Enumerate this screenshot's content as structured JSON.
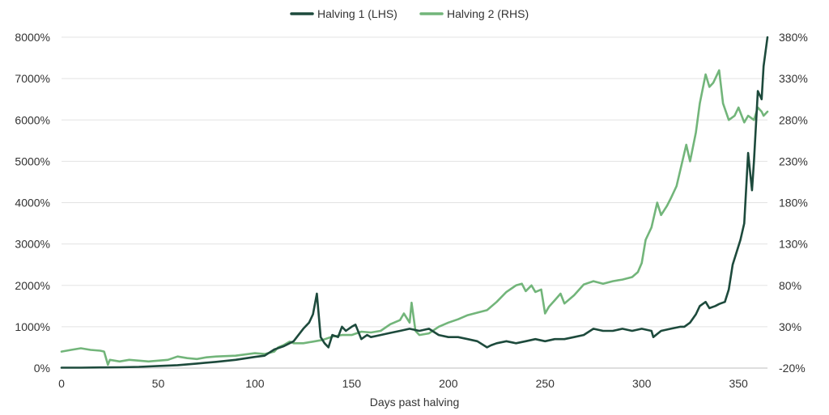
{
  "chart_data": {
    "type": "line",
    "title": "",
    "xlabel": "Days past halving",
    "xlim": [
      0,
      365
    ],
    "x_ticks": [
      0,
      50,
      100,
      150,
      200,
      250,
      300,
      350
    ],
    "x_tick_labels": [
      "0",
      "50",
      "100",
      "150",
      "200",
      "250",
      "300",
      "350"
    ],
    "ylim_left": [
      0,
      8000
    ],
    "y_left_ticks": [
      0,
      1000,
      2000,
      3000,
      4000,
      5000,
      6000,
      7000,
      8000
    ],
    "y_left_tick_labels": [
      "0%",
      "1000%",
      "2000%",
      "3000%",
      "4000%",
      "5000%",
      "6000%",
      "7000%",
      "8000%"
    ],
    "ylim_right": [
      -20,
      380
    ],
    "y_right_ticks": [
      -20,
      30,
      80,
      130,
      180,
      230,
      280,
      330,
      380
    ],
    "y_right_tick_labels": [
      "-20%",
      "30%",
      "80%",
      "130%",
      "180%",
      "230%",
      "280%",
      "330%",
      "380%"
    ],
    "grid": true,
    "legend_position": "top-center",
    "series": [
      {
        "name": "Halving 1 (LHS)",
        "axis": "left",
        "color": "#1d4a3c",
        "x": [
          0,
          10,
          20,
          30,
          40,
          50,
          60,
          70,
          80,
          90,
          100,
          105,
          110,
          115,
          120,
          125,
          128,
          130,
          132,
          134,
          136,
          138,
          140,
          143,
          145,
          147,
          150,
          152,
          155,
          158,
          160,
          165,
          170,
          175,
          180,
          185,
          190,
          195,
          200,
          205,
          210,
          215,
          220,
          222,
          225,
          230,
          235,
          240,
          245,
          250,
          255,
          260,
          265,
          270,
          275,
          280,
          285,
          290,
          295,
          300,
          305,
          306,
          310,
          315,
          320,
          322,
          325,
          328,
          330,
          333,
          335,
          338,
          340,
          343,
          345,
          347,
          349,
          351,
          353,
          355,
          357,
          358,
          360,
          362,
          363,
          365
        ],
        "values": [
          10,
          10,
          15,
          20,
          30,
          50,
          70,
          110,
          150,
          200,
          270,
          300,
          450,
          530,
          650,
          950,
          1100,
          1300,
          1800,
          750,
          600,
          500,
          800,
          750,
          1000,
          900,
          1000,
          1050,
          700,
          800,
          750,
          800,
          850,
          900,
          950,
          900,
          950,
          800,
          750,
          750,
          700,
          650,
          500,
          550,
          600,
          650,
          600,
          650,
          700,
          650,
          700,
          700,
          750,
          800,
          950,
          900,
          900,
          950,
          900,
          950,
          900,
          750,
          900,
          950,
          1000,
          1000,
          1100,
          1300,
          1500,
          1600,
          1450,
          1500,
          1550,
          1600,
          1900,
          2500,
          2800,
          3100,
          3500,
          5200,
          4300,
          5000,
          6700,
          6500,
          7300,
          8000
        ]
      },
      {
        "name": "Halving 2 (RHS)",
        "axis": "right",
        "color": "#72b57a",
        "x": [
          0,
          5,
          10,
          15,
          20,
          22,
          24,
          25,
          30,
          35,
          40,
          45,
          50,
          55,
          60,
          65,
          70,
          75,
          80,
          90,
          100,
          105,
          110,
          112,
          115,
          118,
          120,
          125,
          130,
          135,
          140,
          145,
          150,
          155,
          160,
          165,
          170,
          175,
          177,
          180,
          181,
          183,
          185,
          190,
          195,
          200,
          205,
          210,
          215,
          220,
          225,
          230,
          235,
          238,
          240,
          243,
          245,
          248,
          250,
          252,
          255,
          258,
          260,
          265,
          270,
          275,
          280,
          285,
          290,
          295,
          298,
          300,
          302,
          305,
          308,
          310,
          313,
          315,
          318,
          320,
          323,
          325,
          328,
          330,
          333,
          335,
          337,
          340,
          342,
          345,
          348,
          350,
          353,
          355,
          358,
          360,
          362,
          363,
          365
        ],
        "values": [
          0,
          2,
          4,
          2,
          1,
          0,
          -16,
          -10,
          -12,
          -10,
          -11,
          -12,
          -11,
          -10,
          -6,
          -8,
          -9,
          -7,
          -6,
          -5,
          -2,
          -3,
          0,
          5,
          8,
          12,
          10,
          10,
          12,
          14,
          18,
          20,
          20,
          24,
          23,
          25,
          33,
          38,
          46,
          35,
          59,
          25,
          20,
          22,
          30,
          35,
          39,
          44,
          47,
          50,
          60,
          72,
          80,
          82,
          73,
          80,
          72,
          75,
          46,
          54,
          62,
          70,
          58,
          68,
          81,
          85,
          82,
          85,
          87,
          90,
          96,
          107,
          135,
          150,
          180,
          165,
          176,
          185,
          200,
          220,
          250,
          230,
          265,
          300,
          335,
          320,
          325,
          340,
          300,
          280,
          285,
          295,
          277,
          285,
          280,
          295,
          290,
          285,
          290
        ]
      }
    ]
  }
}
